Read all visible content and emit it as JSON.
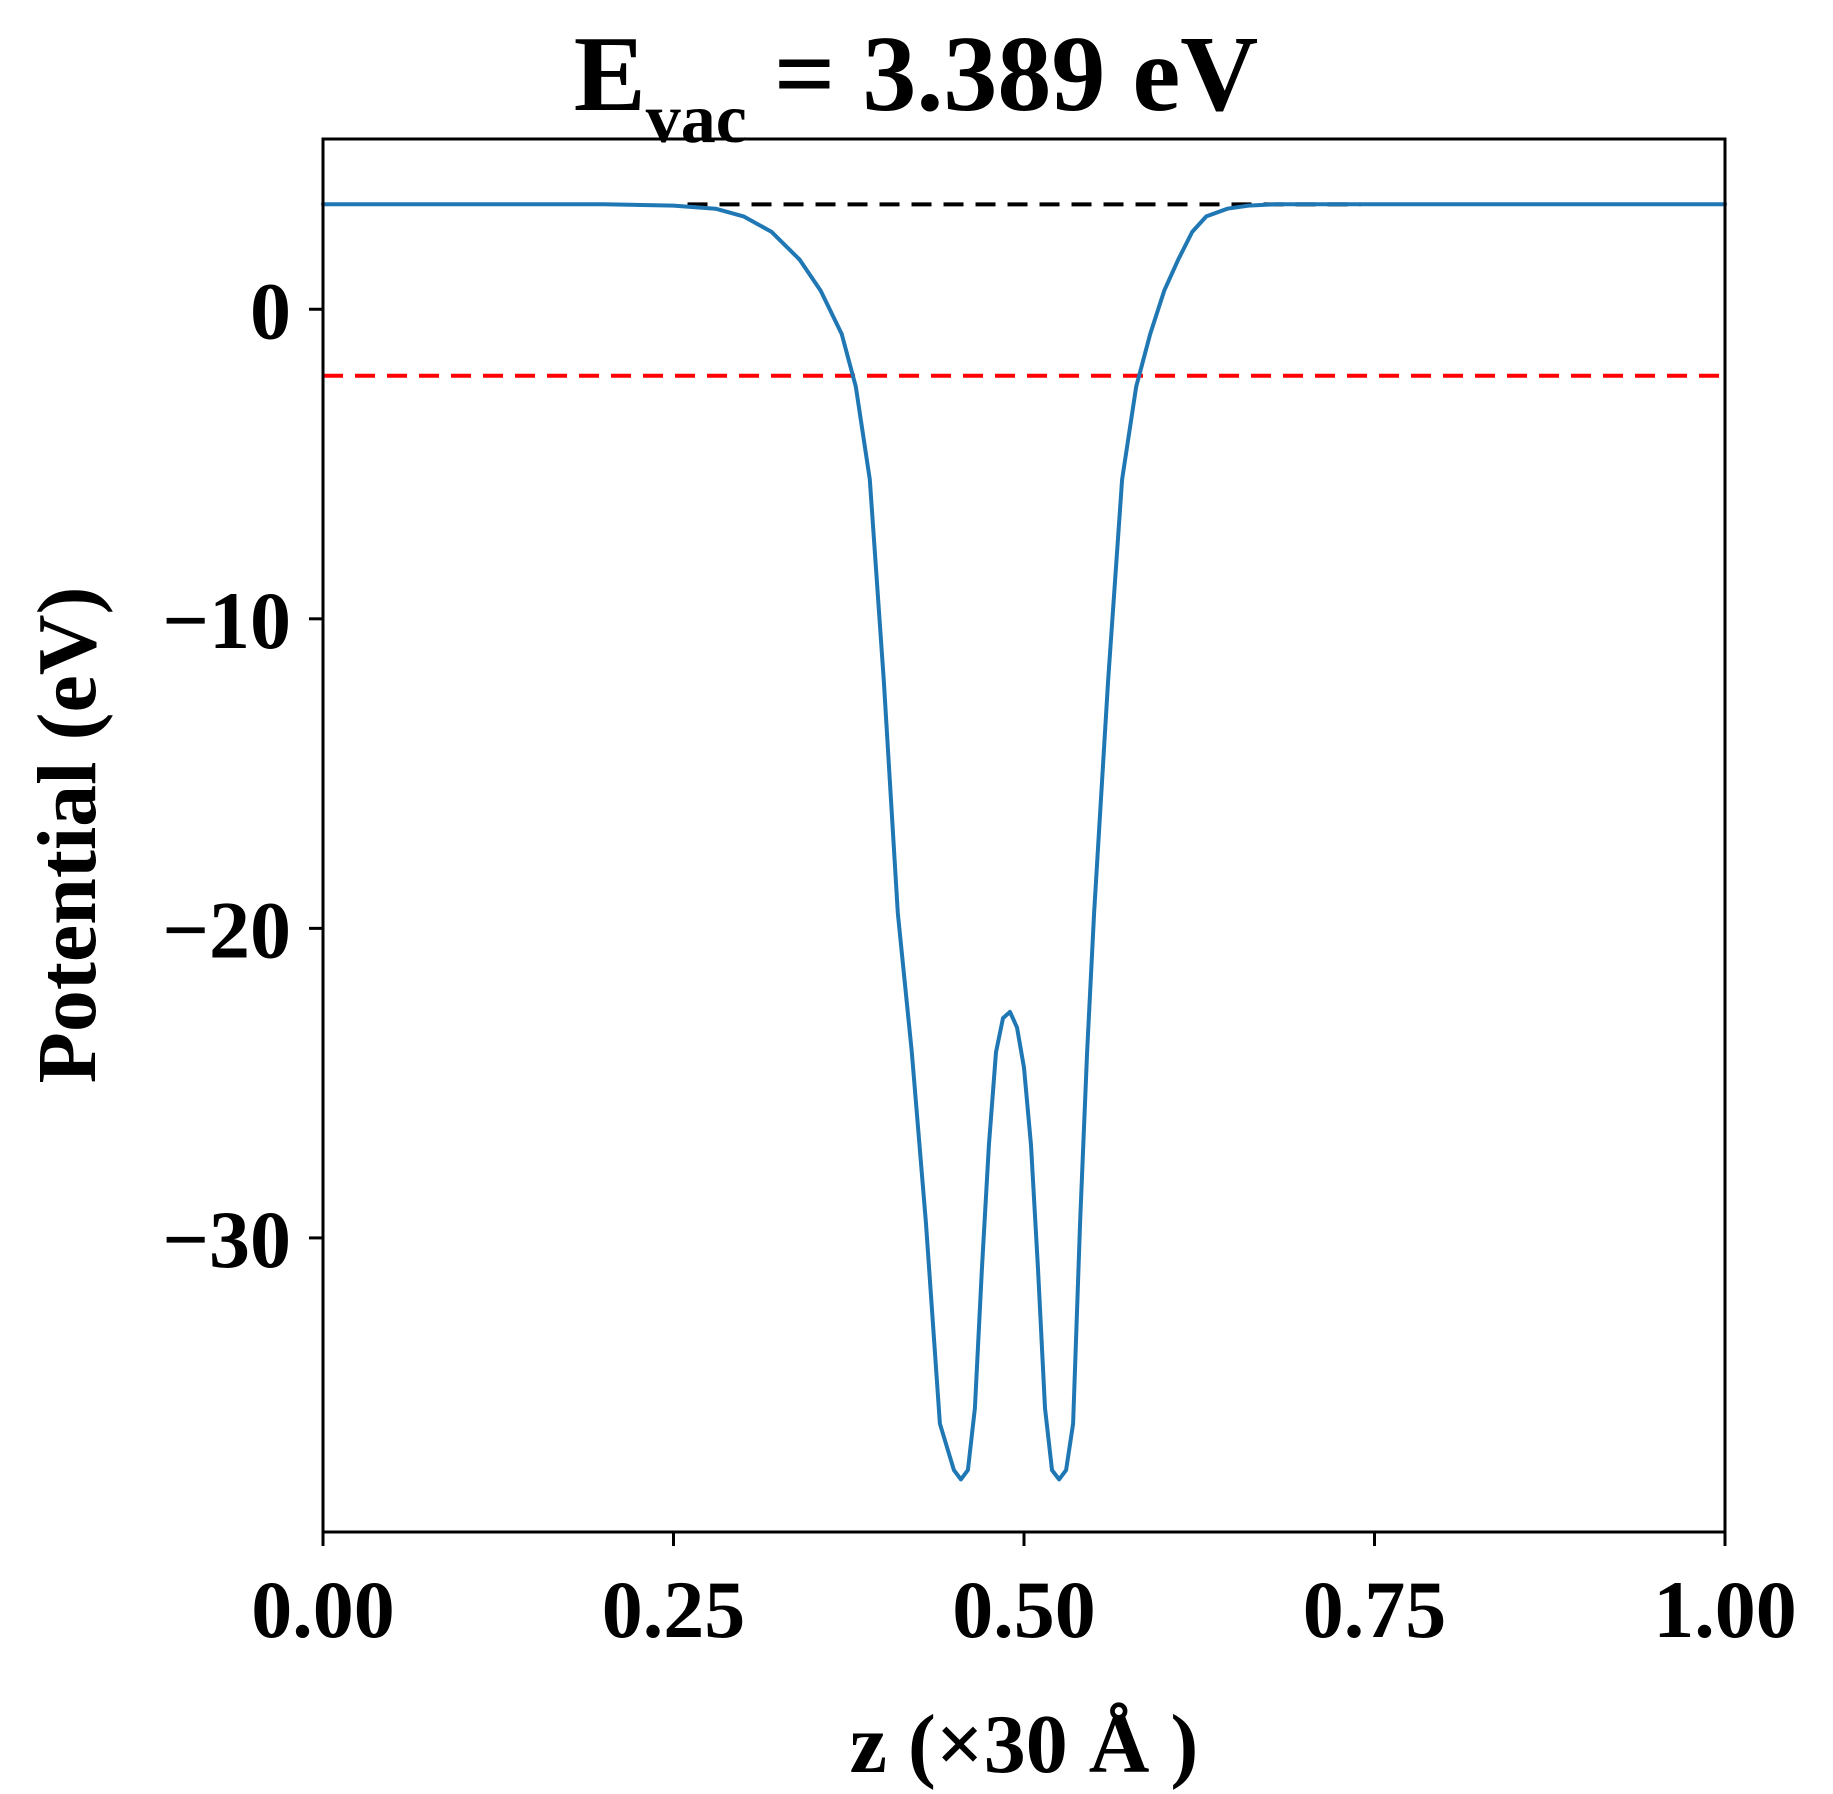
{
  "chart_data": {
    "type": "line",
    "title": {
      "main": "E",
      "subscript": "vac",
      "rest": " = 3.389 eV"
    },
    "xlabel": "z (×30 Å )",
    "ylabel": "Potential (eV)",
    "xlim": [
      0.0,
      1.0
    ],
    "ylim": [
      -39.5,
      5.5
    ],
    "xticks": [
      0.0,
      0.25,
      0.5,
      0.75,
      1.0
    ],
    "xtick_labels": [
      "0.00",
      "0.25",
      "0.50",
      "0.75",
      "1.00"
    ],
    "yticks": [
      0,
      -10,
      -20,
      -30
    ],
    "ytick_labels": [
      "0",
      "−10",
      "−20",
      "−30"
    ],
    "grid": false,
    "reference_lines": [
      {
        "y": 3.389,
        "style": "dashed",
        "color": "#000000",
        "x_range": [
          0.26,
          0.74
        ]
      },
      {
        "y": -2.15,
        "style": "dashed",
        "color": "#ff0000",
        "x_range": [
          0.0,
          1.0
        ]
      }
    ],
    "series": [
      {
        "color": "#1f77b4",
        "x": [
          0.0,
          0.05,
          0.1,
          0.15,
          0.2,
          0.25,
          0.28,
          0.3,
          0.32,
          0.34,
          0.355,
          0.37,
          0.38,
          0.39,
          0.4,
          0.41,
          0.42,
          0.43,
          0.44,
          0.45,
          0.455,
          0.46,
          0.465,
          0.47,
          0.475,
          0.48,
          0.485,
          0.49,
          0.495,
          0.5,
          0.505,
          0.51,
          0.515,
          0.52,
          0.525,
          0.53,
          0.535,
          0.54,
          0.545,
          0.55,
          0.56,
          0.57,
          0.58,
          0.59,
          0.6,
          0.61,
          0.62,
          0.63,
          0.645,
          0.66,
          0.68,
          0.7,
          0.72,
          0.75,
          0.8,
          0.85,
          0.9,
          0.95,
          1.0
        ],
        "y": [
          3.389,
          3.389,
          3.389,
          3.389,
          3.389,
          3.35,
          3.25,
          3.0,
          2.5,
          1.6,
          0.6,
          -0.8,
          -2.5,
          -5.5,
          -12.0,
          -19.5,
          -24.0,
          -29.5,
          -36.0,
          -37.5,
          -37.8,
          -37.5,
          -35.5,
          -31.0,
          -27.0,
          -24.0,
          -22.9,
          -22.7,
          -23.2,
          -24.5,
          -27.0,
          -31.0,
          -35.5,
          -37.5,
          -37.8,
          -37.5,
          -36.0,
          -29.5,
          -24.0,
          -19.5,
          -12.0,
          -5.5,
          -2.5,
          -0.8,
          0.6,
          1.6,
          2.5,
          3.0,
          3.25,
          3.35,
          3.389,
          3.389,
          3.389,
          3.389,
          3.389,
          3.389,
          3.389,
          3.389,
          3.389
        ]
      }
    ]
  }
}
